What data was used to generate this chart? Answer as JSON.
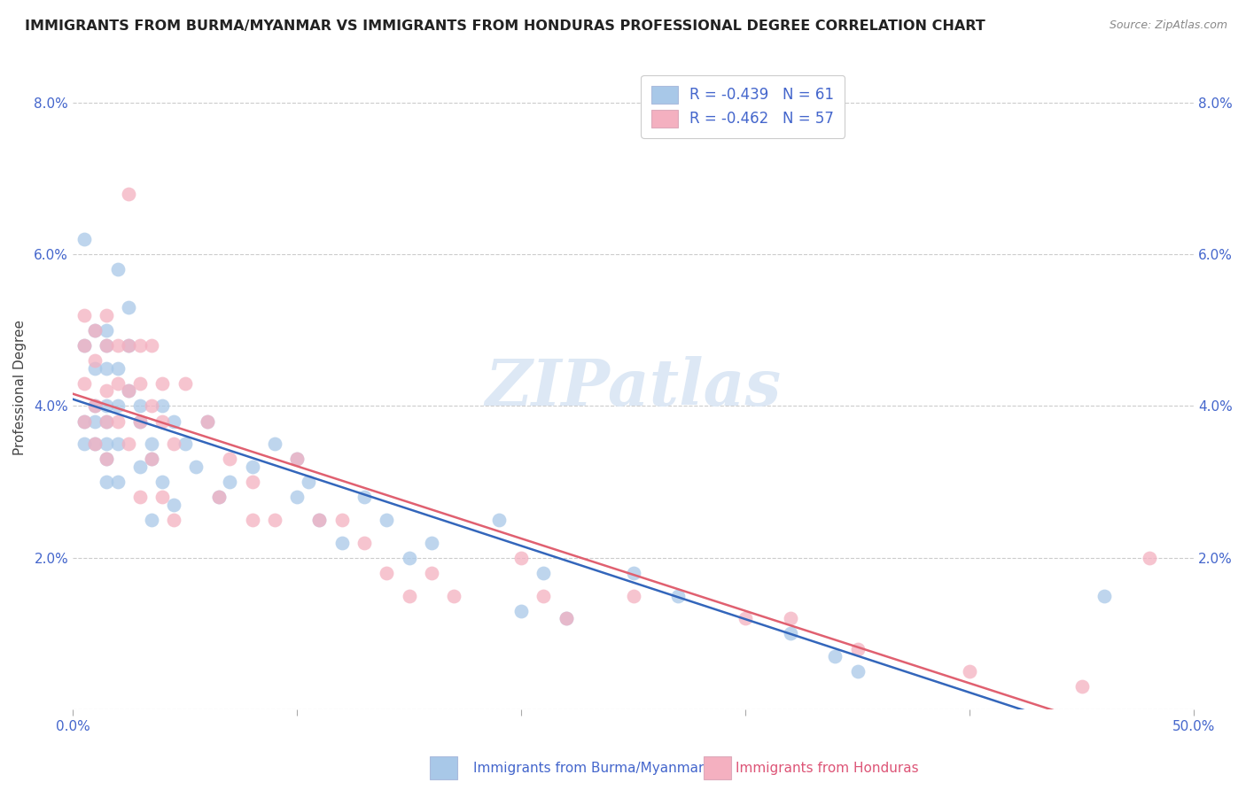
{
  "title": "IMMIGRANTS FROM BURMA/MYANMAR VS IMMIGRANTS FROM HONDURAS PROFESSIONAL DEGREE CORRELATION CHART",
  "source": "Source: ZipAtlas.com",
  "ylabel": "Professional Degree",
  "y_ticks": [
    0.0,
    0.02,
    0.04,
    0.06,
    0.08
  ],
  "y_tick_labels": [
    "",
    "2.0%",
    "4.0%",
    "6.0%",
    "8.0%"
  ],
  "x_ticks": [
    0.0,
    0.1,
    0.2,
    0.3,
    0.4,
    0.5
  ],
  "x_tick_labels": [
    "0.0%",
    "",
    "",
    "",
    "",
    "50.0%"
  ],
  "xlim": [
    0.0,
    0.5
  ],
  "ylim": [
    0.0,
    0.085
  ],
  "legend_blue_text": "R = -0.439   N = 61",
  "legend_pink_text": "R = -0.462   N = 57",
  "legend_blue_label": "Immigrants from Burma/Myanmar",
  "legend_pink_label": "Immigrants from Honduras",
  "blue_color": "#a8c8e8",
  "pink_color": "#f4b0c0",
  "blue_line_color": "#3366bb",
  "pink_line_color": "#e06070",
  "text_color": "#4466cc",
  "watermark_text": "ZIPatlas",
  "watermark_color": "#dde8f5",
  "blue_scatter_x": [
    0.02,
    0.025,
    0.005,
    0.005,
    0.005,
    0.005,
    0.01,
    0.01,
    0.01,
    0.01,
    0.01,
    0.015,
    0.015,
    0.015,
    0.015,
    0.015,
    0.015,
    0.015,
    0.015,
    0.02,
    0.02,
    0.02,
    0.02,
    0.025,
    0.025,
    0.03,
    0.03,
    0.03,
    0.035,
    0.035,
    0.035,
    0.04,
    0.04,
    0.045,
    0.045,
    0.05,
    0.055,
    0.06,
    0.065,
    0.07,
    0.08,
    0.09,
    0.1,
    0.1,
    0.105,
    0.11,
    0.12,
    0.13,
    0.14,
    0.15,
    0.16,
    0.19,
    0.2,
    0.21,
    0.22,
    0.25,
    0.27,
    0.32,
    0.34,
    0.35,
    0.46
  ],
  "blue_scatter_y": [
    0.058,
    0.053,
    0.062,
    0.048,
    0.038,
    0.035,
    0.05,
    0.045,
    0.04,
    0.038,
    0.035,
    0.05,
    0.048,
    0.045,
    0.04,
    0.038,
    0.035,
    0.033,
    0.03,
    0.045,
    0.04,
    0.035,
    0.03,
    0.048,
    0.042,
    0.04,
    0.038,
    0.032,
    0.035,
    0.033,
    0.025,
    0.04,
    0.03,
    0.038,
    0.027,
    0.035,
    0.032,
    0.038,
    0.028,
    0.03,
    0.032,
    0.035,
    0.033,
    0.028,
    0.03,
    0.025,
    0.022,
    0.028,
    0.025,
    0.02,
    0.022,
    0.025,
    0.013,
    0.018,
    0.012,
    0.018,
    0.015,
    0.01,
    0.007,
    0.005,
    0.015
  ],
  "pink_scatter_x": [
    0.005,
    0.005,
    0.005,
    0.005,
    0.01,
    0.01,
    0.01,
    0.01,
    0.015,
    0.015,
    0.015,
    0.015,
    0.015,
    0.02,
    0.02,
    0.02,
    0.025,
    0.025,
    0.025,
    0.025,
    0.03,
    0.03,
    0.03,
    0.03,
    0.035,
    0.035,
    0.035,
    0.04,
    0.04,
    0.04,
    0.045,
    0.045,
    0.05,
    0.06,
    0.065,
    0.07,
    0.08,
    0.08,
    0.09,
    0.1,
    0.11,
    0.12,
    0.13,
    0.14,
    0.15,
    0.16,
    0.17,
    0.2,
    0.21,
    0.22,
    0.25,
    0.3,
    0.32,
    0.35,
    0.4,
    0.45,
    0.48
  ],
  "pink_scatter_y": [
    0.052,
    0.048,
    0.043,
    0.038,
    0.05,
    0.046,
    0.04,
    0.035,
    0.052,
    0.048,
    0.042,
    0.038,
    0.033,
    0.048,
    0.043,
    0.038,
    0.068,
    0.048,
    0.042,
    0.035,
    0.048,
    0.043,
    0.038,
    0.028,
    0.048,
    0.04,
    0.033,
    0.043,
    0.038,
    0.028,
    0.035,
    0.025,
    0.043,
    0.038,
    0.028,
    0.033,
    0.03,
    0.025,
    0.025,
    0.033,
    0.025,
    0.025,
    0.022,
    0.018,
    0.015,
    0.018,
    0.015,
    0.02,
    0.015,
    0.012,
    0.015,
    0.012,
    0.012,
    0.008,
    0.005,
    0.003,
    0.02
  ]
}
